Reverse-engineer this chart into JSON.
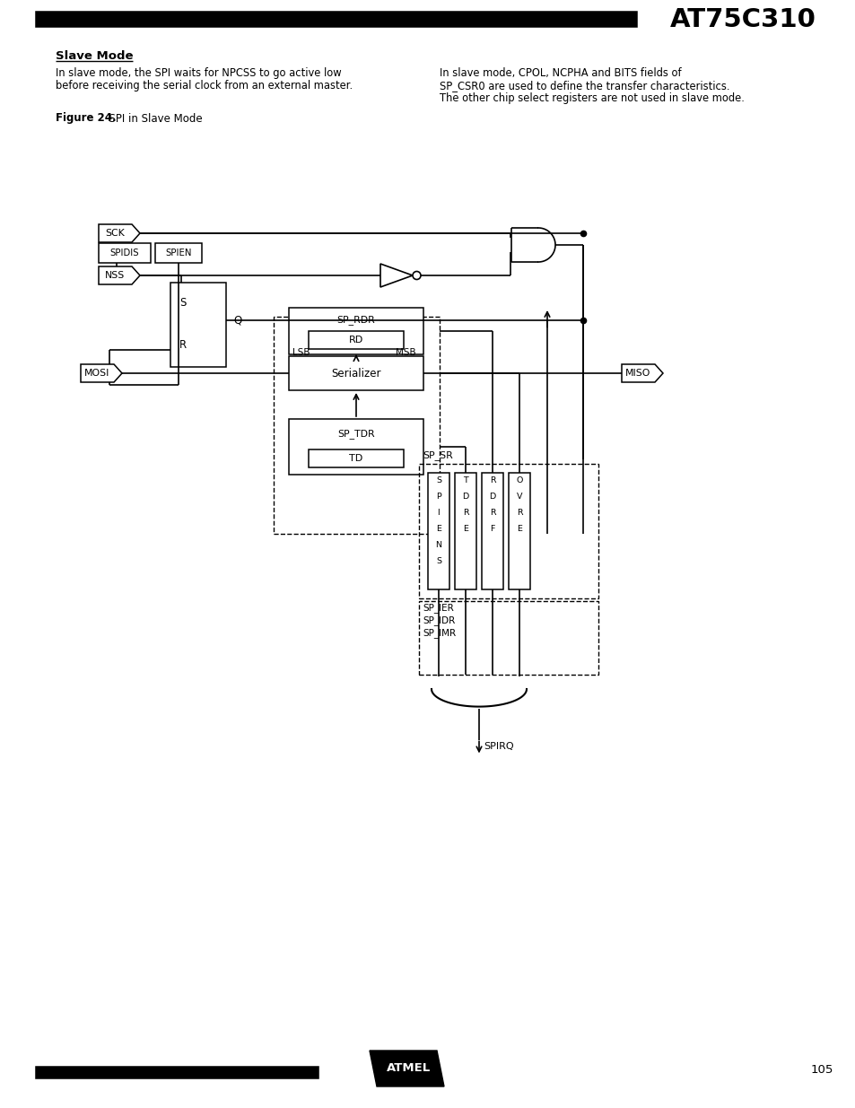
{
  "title": "AT75C310",
  "section_title": "Slave Mode",
  "text_left1": "In slave mode, the SPI waits for NPCSS to go active low",
  "text_left2": "before receiving the serial clock from an external master.",
  "text_right1": "In slave mode, CPOL, NCPHA and BITS fields of",
  "text_right2": "SP_CSR0 are used to define the transfer characteristics.",
  "text_right3": "The other chip select registers are not used in slave mode.",
  "figure_bold": "Figure 24.",
  "figure_rest": "  SPI in Slave Mode",
  "page_number": "105",
  "bg": "#ffffff"
}
